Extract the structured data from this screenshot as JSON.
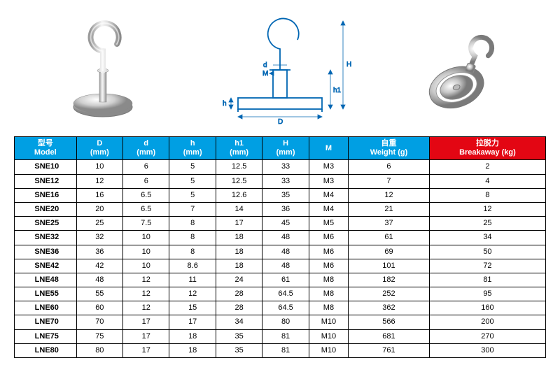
{
  "headers": [
    {
      "cn": "型号",
      "en": "Model",
      "class": "blue"
    },
    {
      "cn": "D",
      "en": "(mm)",
      "class": "blue"
    },
    {
      "cn": "d",
      "en": "(mm)",
      "class": "blue"
    },
    {
      "cn": "h",
      "en": "(mm)",
      "class": "blue"
    },
    {
      "cn": "h1",
      "en": "(mm)",
      "class": "blue"
    },
    {
      "cn": "H",
      "en": "(mm)",
      "class": "blue"
    },
    {
      "cn": "",
      "en": "M",
      "class": "blue"
    },
    {
      "cn": "自重",
      "en": "Weight (g)",
      "class": "blue"
    },
    {
      "cn": "拉脱力",
      "en": "Breakaway (kg)",
      "class": "red"
    }
  ],
  "rows": [
    [
      "SNE10",
      "10",
      "6",
      "5",
      "12.5",
      "33",
      "M3",
      "6",
      "2"
    ],
    [
      "SNE12",
      "12",
      "6",
      "5",
      "12.5",
      "33",
      "M3",
      "7",
      "4"
    ],
    [
      "SNE16",
      "16",
      "6.5",
      "5",
      "12.6",
      "35",
      "M4",
      "12",
      "8"
    ],
    [
      "SNE20",
      "20",
      "6.5",
      "7",
      "14",
      "36",
      "M4",
      "21",
      "12"
    ],
    [
      "SNE25",
      "25",
      "7.5",
      "8",
      "17",
      "45",
      "M5",
      "37",
      "25"
    ],
    [
      "SNE32",
      "32",
      "10",
      "8",
      "18",
      "48",
      "M6",
      "61",
      "34"
    ],
    [
      "SNE36",
      "36",
      "10",
      "8",
      "18",
      "48",
      "M6",
      "69",
      "50"
    ],
    [
      "SNE42",
      "42",
      "10",
      "8.6",
      "18",
      "48",
      "M6",
      "101",
      "72"
    ],
    [
      "LNE48",
      "48",
      "12",
      "11",
      "24",
      "61",
      "M8",
      "182",
      "81"
    ],
    [
      "LNE55",
      "55",
      "12",
      "12",
      "28",
      "64.5",
      "M8",
      "252",
      "95"
    ],
    [
      "LNE60",
      "60",
      "12",
      "15",
      "28",
      "64.5",
      "M8",
      "362",
      "160"
    ],
    [
      "LNE70",
      "70",
      "17",
      "17",
      "34",
      "80",
      "M10",
      "566",
      "200"
    ],
    [
      "LNE75",
      "75",
      "17",
      "18",
      "35",
      "81",
      "M10",
      "681",
      "270"
    ],
    [
      "LNE80",
      "80",
      "17",
      "18",
      "35",
      "81",
      "M10",
      "761",
      "300"
    ]
  ],
  "diagram_labels": {
    "D": "D",
    "d": "d",
    "h": "h",
    "h1": "h1",
    "H": "H",
    "M": "M"
  },
  "colors": {
    "header_blue": "#009fe3",
    "header_red": "#e30613",
    "border": "#000000"
  }
}
